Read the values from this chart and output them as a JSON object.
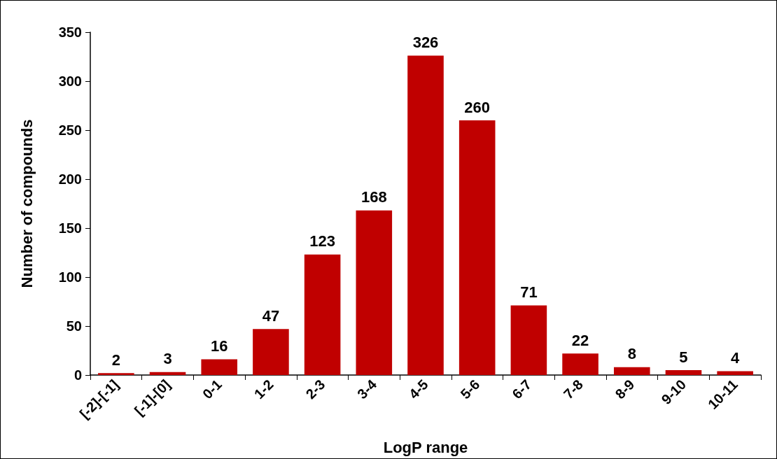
{
  "chart_data": {
    "type": "bar",
    "xlabel": "LogP range",
    "ylabel": "Number of compounds",
    "categories": [
      "[-2]-[-1]",
      "[-1]-[0]",
      "0-1",
      "1-2",
      "2-3",
      "3-4",
      "4-5",
      "5-6",
      "6-7",
      "7-8",
      "8-9",
      "9-10",
      "10-11"
    ],
    "values": [
      2,
      3,
      16,
      47,
      123,
      168,
      326,
      260,
      71,
      22,
      8,
      5,
      4
    ],
    "color": "#c00000",
    "ylim": [
      0,
      350
    ],
    "yticks": [
      0,
      50,
      100,
      150,
      200,
      250,
      300,
      350
    ],
    "grid": false,
    "data_labels": true
  }
}
